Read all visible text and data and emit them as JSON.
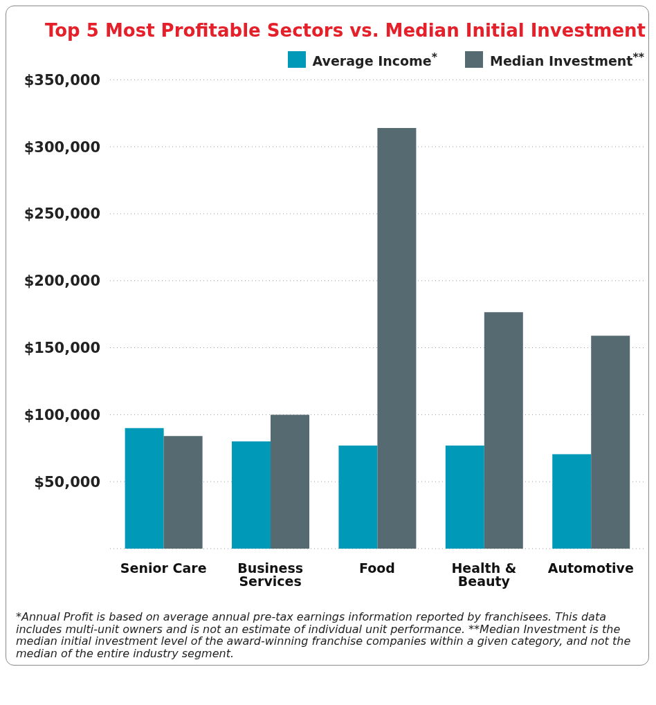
{
  "chart_data": {
    "type": "bar",
    "title": "Top 5 Most Profitable Sectors vs. Median Initial Investment",
    "categories": [
      "Senior Care",
      "Business Services",
      "Food",
      "Health & Beauty",
      "Automotive"
    ],
    "series": [
      {
        "name": "Average Income$^{*}$",
        "color": "#0099b8",
        "values": [
          90000,
          80000,
          77000,
          77000,
          70500
        ]
      },
      {
        "name": "Median Investment$^{**}$",
        "color": "#566a72",
        "values": [
          84000,
          100000,
          314000,
          176500,
          159000
        ]
      }
    ],
    "ylim": [
      0,
      350000
    ],
    "yticks": [
      {
        "value": 50000,
        "label": "$50,000"
      },
      {
        "value": 100000,
        "label": "$100,000"
      },
      {
        "value": 150000,
        "label": "$150,000"
      },
      {
        "value": 200000,
        "label": "$200,000"
      },
      {
        "value": 250000,
        "label": "$250,000"
      },
      {
        "value": 300000,
        "label": "$300,000"
      },
      {
        "value": 350000,
        "label": "$350,000"
      }
    ],
    "grid": "y",
    "legend": "top right",
    "annotations": [
      "*Annual Profit is based on average annual pre-tax earnings information reported by franchisees. This data includes multi-unit owners and is not an estimate of individual unit performance. **Median Investment is the median initial investment level of the award-winning franchise companies within a given category, and not the median of the entire industry segment."
    ]
  }
}
